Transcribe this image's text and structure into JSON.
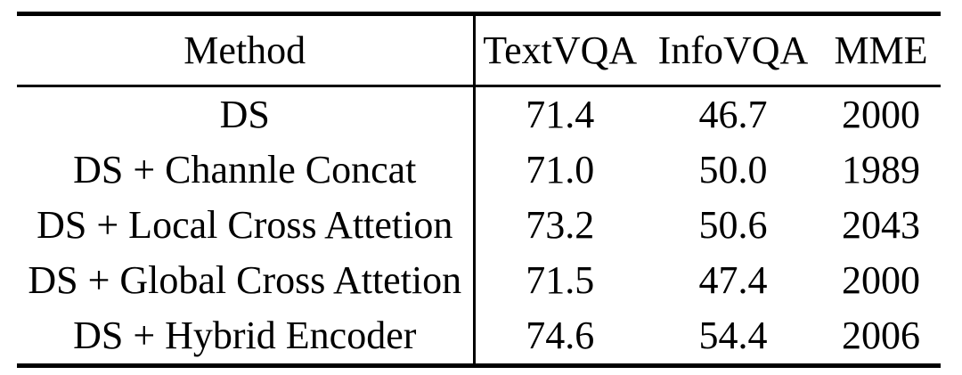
{
  "page": {
    "background_color": "#ffffff",
    "text_color": "#000000"
  },
  "table": {
    "header": [
      "Method",
      "TextVQA",
      "InfoVQA",
      "MME"
    ],
    "rows": [
      [
        "DS",
        "71.4",
        "46.7",
        "2000"
      ],
      [
        "DS + Channle Concat",
        "71.0",
        "50.0",
        "1989"
      ],
      [
        "DS + Local Cross Attetion",
        "73.2",
        "50.6",
        "2043"
      ],
      [
        "DS + Global Cross Attetion",
        "71.5",
        "47.4",
        "2000"
      ],
      [
        "DS + Hybrid Encoder",
        "74.6",
        "54.4",
        "2006"
      ]
    ]
  },
  "chart_data": {
    "type": "table",
    "columns": [
      "Method",
      "TextVQA",
      "InfoVQA",
      "MME"
    ],
    "rows": [
      {
        "method": "DS",
        "textvqa": 71.4,
        "infovqa": 46.7,
        "mme": 2000
      },
      {
        "method": "DS + Channle Concat",
        "textvqa": 71.0,
        "infovqa": 50.0,
        "mme": 1989
      },
      {
        "method": "DS + Local Cross Attetion",
        "textvqa": 73.2,
        "infovqa": 50.6,
        "mme": 2043
      },
      {
        "method": "DS + Global Cross Attetion",
        "textvqa": 71.5,
        "infovqa": 47.4,
        "mme": 2000
      },
      {
        "method": "DS + Hybrid Encoder",
        "textvqa": 74.6,
        "infovqa": 54.4,
        "mme": 2006
      }
    ]
  }
}
